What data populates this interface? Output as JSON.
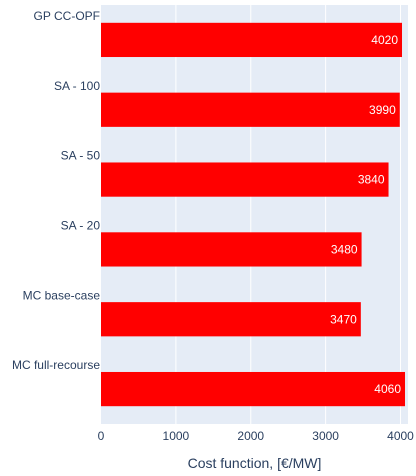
{
  "chart_data": {
    "type": "bar",
    "orientation": "horizontal",
    "categories": [
      "GP CC-OPF",
      "SA - 100",
      "SA - 50",
      "SA - 20",
      "MC base-case",
      "MC full-recourse"
    ],
    "values": [
      4020,
      3990,
      3840,
      3480,
      3470,
      4060
    ],
    "value_labels": [
      "4020",
      "3990",
      "3840",
      "3480",
      "3470",
      "4060"
    ],
    "title": "",
    "xlabel": "Cost function, [€/MW]",
    "ylabel": "",
    "xlim": [
      0,
      4100
    ],
    "x_ticks": [
      0,
      1000,
      2000,
      3000,
      4000
    ],
    "x_tick_labels": [
      "0",
      "1000",
      "2000",
      "3000",
      "4000"
    ],
    "grid": true,
    "legend": "none"
  },
  "colors": {
    "bar": "#ff0000",
    "plot_background": "#e5ecf6",
    "grid": "#ffffff",
    "text": "#2a3f5f",
    "bar_label": "#ffffff"
  }
}
